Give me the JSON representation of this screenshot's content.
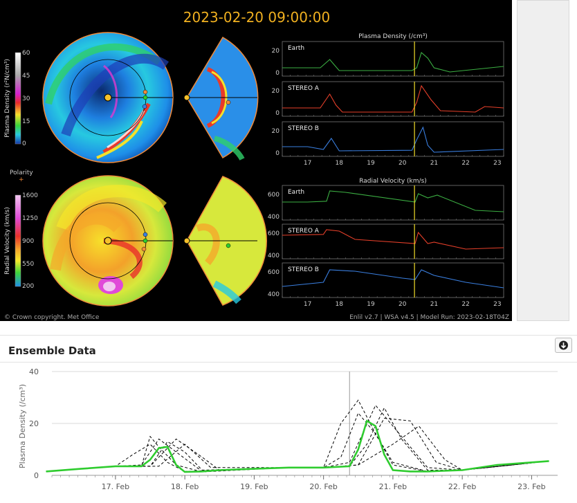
{
  "model_panel": {
    "timestamp": "2023-02-20 09:00:00",
    "copyright": "© Crown copyright. Met Office",
    "run_info": "Enlil v2.7 | WSA v4.5 | Model Run: 2023-02-18T04Z",
    "density_colorbar": {
      "label": "Plasma Density (r²N/cm³)",
      "ticks": [
        "60",
        "45",
        "30",
        "15",
        "0"
      ]
    },
    "polarity_label": "Polarity",
    "velocity_colorbar": {
      "label": "Radial Velocity (km/s)",
      "ticks": [
        "1600",
        "1250",
        "900",
        "550",
        "200"
      ]
    },
    "density_plot_title": "Plasma Density (/cm³)",
    "velocity_plot_title": "Radial Velocity (km/s)",
    "density_panels": [
      {
        "name": "Earth",
        "color": "#3cb043",
        "y_ticks": [
          "20",
          "0"
        ]
      },
      {
        "name": "STEREO A",
        "color": "#e8402a",
        "y_ticks": [
          "20",
          "0"
        ]
      },
      {
        "name": "STEREO B",
        "color": "#3a7fe0",
        "y_ticks": [
          "20",
          "0"
        ]
      }
    ],
    "velocity_panels": [
      {
        "name": "Earth",
        "color": "#3cb043",
        "y_ticks": [
          "600",
          "400"
        ]
      },
      {
        "name": "STEREO A",
        "color": "#e8402a",
        "y_ticks": [
          "600",
          "400"
        ]
      },
      {
        "name": "STEREO B",
        "color": "#3a7fe0",
        "y_ticks": [
          "600",
          "400"
        ]
      }
    ],
    "x_ticks": [
      "17",
      "18",
      "19",
      "20",
      "21",
      "22",
      "23"
    ]
  },
  "ensemble": {
    "title": "Ensemble Data",
    "download_icon": "download-icon"
  },
  "chart_data": {
    "type": "line",
    "title": "",
    "xlabel": "",
    "ylabel": "Plasma Density (/cm³)",
    "ylim": [
      0,
      40
    ],
    "y_ticks": [
      "40",
      "20",
      "0"
    ],
    "x_ticks": [
      "17. Feb",
      "18. Feb",
      "19. Feb",
      "20. Feb",
      "21. Feb",
      "22. Feb",
      "23. Feb"
    ],
    "grid": true,
    "current_time_marker": "2023-02-20 09:00",
    "series": [
      {
        "color": "#2ecc2e",
        "x": [
          "2023-02-16 00:00",
          "2023-02-16 12:00",
          "2023-02-17 00:00",
          "2023-02-17 09:00",
          "2023-02-17 12:00",
          "2023-02-17 15:00",
          "2023-02-17 18:00",
          "2023-02-17 21:00",
          "2023-02-18 00:00",
          "2023-02-18 06:00",
          "2023-02-18 12:00",
          "2023-02-19 00:00",
          "2023-02-19 12:00",
          "2023-02-20 00:00",
          "2023-02-20 09:00",
          "2023-02-20 12:00",
          "2023-02-20 15:00",
          "2023-02-20 18:00",
          "2023-02-20 21:00",
          "2023-02-21 00:00",
          "2023-02-21 06:00",
          "2023-02-21 12:00",
          "2023-02-22 00:00",
          "2023-02-22 12:00",
          "2023-02-23 00:00",
          "2023-02-23 06:00"
        ],
        "values": [
          1.5,
          2.5,
          3.5,
          3.5,
          6,
          10.5,
          11,
          4,
          1.3,
          1.5,
          2,
          2.5,
          3,
          3,
          3.5,
          10,
          21,
          19,
          8,
          2,
          1.5,
          1.5,
          2,
          4,
          5,
          5.5
        ]
      },
      {
        "color": "#000000",
        "style": "dashed",
        "x": [
          "2023-02-16 00:00",
          "2023-02-17 00:00",
          "2023-02-17 09:00",
          "2023-02-17 12:00",
          "2023-02-17 15:00",
          "2023-02-17 21:00",
          "2023-02-18 06:00",
          "2023-02-19 12:00",
          "2023-02-20 00:00",
          "2023-02-20 06:00",
          "2023-02-20 12:00",
          "2023-02-20 18:00",
          "2023-02-21 00:00",
          "2023-02-21 12:00",
          "2023-02-22 00:00",
          "2023-02-23 06:00"
        ],
        "values": [
          1.5,
          3.5,
          3.5,
          15,
          11,
          4,
          1.3,
          3,
          3,
          7,
          24,
          16,
          5,
          1.5,
          2,
          5.5
        ]
      },
      {
        "color": "#000000",
        "style": "dashed",
        "x": [
          "2023-02-16 00:00",
          "2023-02-17 00:00",
          "2023-02-17 12:00",
          "2023-02-17 18:00",
          "2023-02-18 00:00",
          "2023-02-18 06:00",
          "2023-02-19 12:00",
          "2023-02-20 00:00",
          "2023-02-20 09:00",
          "2023-02-20 15:00",
          "2023-02-20 21:00",
          "2023-02-21 03:00",
          "2023-02-21 12:00",
          "2023-02-22 00:00",
          "2023-02-23 06:00"
        ],
        "values": [
          1.5,
          3.5,
          3.5,
          13,
          9,
          2,
          3,
          3,
          3.5,
          12,
          26,
          14,
          2,
          2,
          5.5
        ]
      },
      {
        "color": "#000000",
        "style": "dashed",
        "x": [
          "2023-02-16 00:00",
          "2023-02-17 00:00",
          "2023-02-17 06:00",
          "2023-02-17 12:00",
          "2023-02-17 18:00",
          "2023-02-18 00:00",
          "2023-02-19 12:00",
          "2023-02-20 00:00",
          "2023-02-20 06:00",
          "2023-02-20 12:00",
          "2023-02-20 18:00",
          "2023-02-21 00:00",
          "2023-02-21 12:00",
          "2023-02-22 00:00",
          "2023-02-23 06:00"
        ],
        "values": [
          1.5,
          3.5,
          8,
          12,
          5,
          1.5,
          3,
          3,
          20,
          29,
          16,
          4,
          1.5,
          2,
          5.5
        ]
      },
      {
        "color": "#000000",
        "style": "dashed",
        "x": [
          "2023-02-16 00:00",
          "2023-02-17 00:00",
          "2023-02-17 12:00",
          "2023-02-17 21:00",
          "2023-02-18 06:00",
          "2023-02-18 12:00",
          "2023-02-19 12:00",
          "2023-02-20 00:00",
          "2023-02-20 12:00",
          "2023-02-20 21:00",
          "2023-02-21 06:00",
          "2023-02-21 15:00",
          "2023-02-22 00:00",
          "2023-02-23 06:00"
        ],
        "values": [
          1.5,
          3.5,
          3.5,
          14,
          7,
          2,
          3,
          3,
          4,
          22,
          21,
          5,
          2,
          5.5
        ]
      },
      {
        "color": "#000000",
        "style": "dashed",
        "x": [
          "2023-02-16 00:00",
          "2023-02-17 00:00",
          "2023-02-17 15:00",
          "2023-02-18 00:00",
          "2023-02-18 09:00",
          "2023-02-19 12:00",
          "2023-02-20 00:00",
          "2023-02-20 12:00",
          "2023-02-21 00:00",
          "2023-02-21 09:00",
          "2023-02-21 18:00",
          "2023-02-22 00:00",
          "2023-02-23 06:00"
        ],
        "values": [
          1.5,
          3.5,
          3.5,
          12,
          3,
          3,
          3,
          4,
          12,
          19,
          6,
          2,
          5.5
        ]
      },
      {
        "color": "#000000",
        "style": "dashed",
        "x": [
          "2023-02-16 00:00",
          "2023-02-17 00:00",
          "2023-02-17 09:00",
          "2023-02-17 15:00",
          "2023-02-17 21:00",
          "2023-02-18 06:00",
          "2023-02-19 12:00",
          "2023-02-20 00:00",
          "2023-02-20 09:00",
          "2023-02-20 18:00",
          "2023-02-21 03:00",
          "2023-02-21 12:00",
          "2023-02-22 00:00",
          "2023-02-23 06:00"
        ],
        "values": [
          1.5,
          3.5,
          4,
          14,
          9,
          1.5,
          3,
          3,
          5,
          27,
          15,
          3,
          2,
          5.5
        ]
      }
    ]
  }
}
